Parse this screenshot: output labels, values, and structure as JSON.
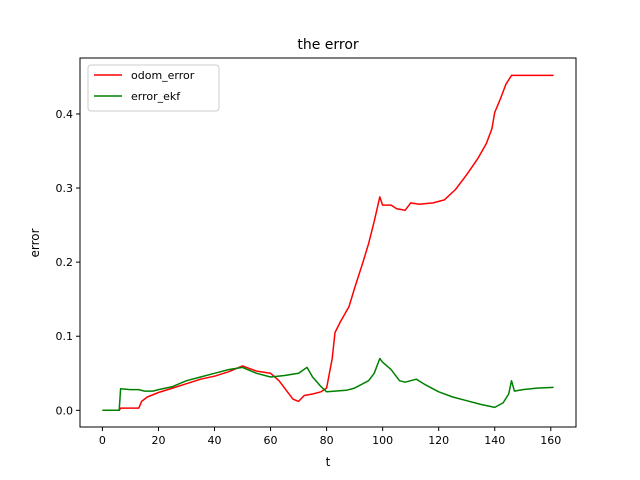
{
  "chart_data": {
    "type": "line",
    "title": "the error",
    "xlabel": "t",
    "ylabel": "error",
    "xlim": [
      -8,
      169
    ],
    "ylim": [
      -0.0225,
      0.4755
    ],
    "xticks": [
      0,
      20,
      40,
      60,
      80,
      100,
      120,
      140,
      160
    ],
    "yticks": [
      0.0,
      0.1,
      0.2,
      0.3,
      0.4
    ],
    "xtick_labels": [
      "0",
      "20",
      "40",
      "60",
      "80",
      "100",
      "120",
      "140",
      "160"
    ],
    "ytick_labels": [
      "0.0",
      "0.1",
      "0.2",
      "0.3",
      "0.4"
    ],
    "grid": false,
    "legend_position": "top-left",
    "series": [
      {
        "name": "odom_error",
        "color": "#ff0000",
        "x": [
          0,
          6,
          6.5,
          13,
          14,
          16,
          20,
          25,
          30,
          35,
          40,
          45,
          50,
          55,
          60,
          63,
          66,
          68,
          70,
          72,
          75,
          78,
          80,
          81,
          82,
          83,
          85,
          88,
          90,
          93,
          95,
          97,
          99,
          100,
          103,
          105,
          108,
          110,
          113,
          118,
          122,
          126,
          130,
          134,
          137,
          139,
          140,
          142,
          144,
          146,
          150,
          155,
          161
        ],
        "y": [
          0.0,
          0.0,
          0.003,
          0.003,
          0.012,
          0.018,
          0.024,
          0.03,
          0.036,
          0.042,
          0.046,
          0.052,
          0.06,
          0.053,
          0.05,
          0.04,
          0.025,
          0.015,
          0.012,
          0.02,
          0.022,
          0.025,
          0.03,
          0.05,
          0.07,
          0.105,
          0.12,
          0.14,
          0.165,
          0.2,
          0.225,
          0.255,
          0.288,
          0.277,
          0.277,
          0.272,
          0.27,
          0.28,
          0.278,
          0.28,
          0.284,
          0.298,
          0.318,
          0.34,
          0.36,
          0.38,
          0.402,
          0.42,
          0.44,
          0.452,
          0.452,
          0.452,
          0.452
        ]
      },
      {
        "name": "error_ekf",
        "color": "#008000",
        "x": [
          0,
          6,
          6.5,
          10,
          13,
          15,
          18,
          20,
          25,
          30,
          35,
          40,
          45,
          50,
          55,
          60,
          65,
          70,
          73,
          75,
          78,
          80,
          83,
          87,
          90,
          95,
          97,
          99,
          100,
          103,
          106,
          108,
          112,
          115,
          120,
          125,
          130,
          135,
          140,
          143,
          145,
          146,
          147,
          150,
          155,
          161
        ],
        "y": [
          0.0,
          0.0,
          0.029,
          0.028,
          0.028,
          0.026,
          0.026,
          0.028,
          0.032,
          0.04,
          0.045,
          0.05,
          0.055,
          0.058,
          0.05,
          0.045,
          0.047,
          0.05,
          0.058,
          0.045,
          0.032,
          0.025,
          0.026,
          0.027,
          0.03,
          0.04,
          0.05,
          0.07,
          0.065,
          0.055,
          0.04,
          0.038,
          0.042,
          0.035,
          0.025,
          0.018,
          0.013,
          0.008,
          0.004,
          0.01,
          0.022,
          0.04,
          0.026,
          0.028,
          0.03,
          0.031
        ]
      }
    ]
  }
}
